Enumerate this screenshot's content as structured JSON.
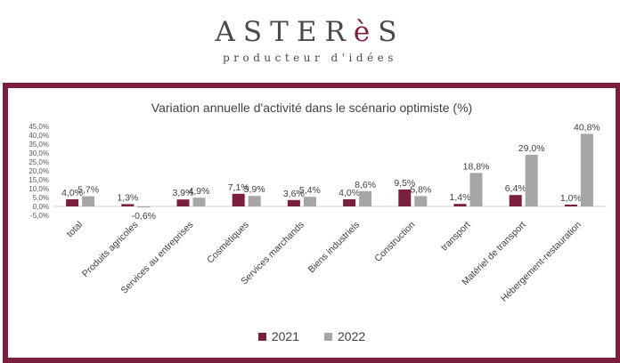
{
  "brand": {
    "name_before": "ASTER",
    "name_accent": "è",
    "name_after": "S",
    "tagline": "producteur d'idées"
  },
  "colors": {
    "frame": "#7a1f3d",
    "series2021": "#7a1f3d",
    "series2022": "#a6a6a6"
  },
  "chart_data": {
    "type": "bar",
    "title": "Variation annuelle d'activité dans le scénario optimiste (%)",
    "categories": [
      "total",
      "Produits agricoles",
      "Services au entreprises",
      "Cosmétiques",
      "Services marchands",
      "Biens industriels",
      "Construction",
      "transport",
      "Matériel de transport",
      "Hébergement-restauration"
    ],
    "series": [
      {
        "name": "2021",
        "values": [
          4.0,
          1.3,
          3.9,
          7.1,
          3.6,
          4.0,
          9.5,
          1.4,
          6.4,
          1.0
        ],
        "labels": [
          "4,0%",
          "1,3%",
          "3,9%",
          "7,1%",
          "3,6%",
          "4,0%",
          "9,5%",
          "1,4%",
          "6,4%",
          "1,0%"
        ]
      },
      {
        "name": "2022",
        "values": [
          5.7,
          -0.6,
          4.9,
          5.9,
          5.4,
          8.6,
          5.8,
          18.8,
          29.0,
          40.8
        ],
        "labels": [
          "5,7%",
          "-0,6%",
          "4,9%",
          "5,9%",
          "5,4%",
          "8,6%",
          "5,8%",
          "18,8%",
          "29,0%",
          "40,8%"
        ]
      }
    ],
    "yticks": [
      "45,0%",
      "40,0%",
      "35,0%",
      "30,0%",
      "25,0%",
      "20,0%",
      "15,0%",
      "10,0%",
      "5,0%",
      "0,0%",
      "-5,0%"
    ],
    "ylim": [
      -5,
      45
    ],
    "ytick_step": 5,
    "grid": false,
    "legend": "bottom-center"
  }
}
